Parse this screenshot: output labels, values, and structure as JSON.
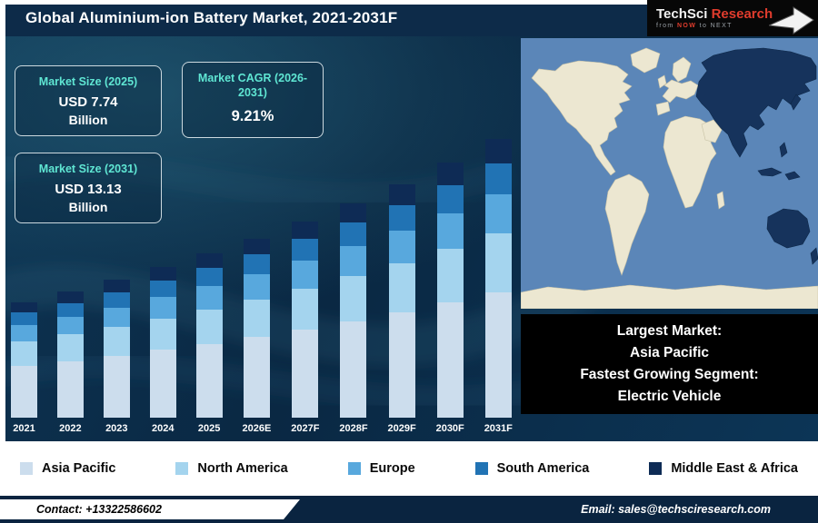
{
  "colors": {
    "header_bg": "#0d2b49",
    "main_bg": "#0a2843",
    "accent_teal": "#5fe6d3",
    "footer_bg": "#0a2440",
    "callout_bg": "#000000",
    "legend_bg": "#ffffff",
    "logo_red": "#e03c2d"
  },
  "header": {
    "title": "Global Aluminium-ion Battery Market, 2021-2031F",
    "logo": {
      "brand": "TechSci",
      "brand2": "Research",
      "tagline_pre": "from ",
      "tagline_highlight": "NOW",
      "tagline_post": " to NEXT"
    }
  },
  "stats": [
    {
      "label": "Market Size (2025)",
      "value": "USD 7.74",
      "unit": "Billion"
    },
    {
      "label": "Market CAGR (2026-2031)",
      "value": "9.21%"
    },
    {
      "label": "Market Size (2031)",
      "value": "USD 13.13",
      "unit": "Billion"
    }
  ],
  "chart_data": {
    "type": "bar",
    "stacked": true,
    "title": "Global Aluminium-ion Battery Market, 2021-2031F",
    "unit": "USD Billion",
    "categories": [
      "2021",
      "2022",
      "2023",
      "2024",
      "2025",
      "2026E",
      "2027F",
      "2028F",
      "2029F",
      "2030F",
      "2031F"
    ],
    "totals": [
      5.44,
      5.94,
      6.49,
      7.09,
      7.74,
      8.45,
      9.23,
      10.08,
      11.01,
      12.02,
      13.13
    ],
    "series": [
      {
        "name": "Asia Pacific",
        "color": "#ccdded",
        "values": [
          2.45,
          2.67,
          2.92,
          3.19,
          3.48,
          3.8,
          4.15,
          4.54,
          4.95,
          5.41,
          5.91
        ]
      },
      {
        "name": "North America",
        "color": "#a4d4ee",
        "values": [
          1.14,
          1.25,
          1.36,
          1.49,
          1.63,
          1.77,
          1.94,
          2.12,
          2.31,
          2.52,
          2.76
        ]
      },
      {
        "name": "Europe",
        "color": "#58a8dd",
        "values": [
          0.76,
          0.83,
          0.91,
          0.99,
          1.08,
          1.18,
          1.29,
          1.41,
          1.54,
          1.68,
          1.84
        ]
      },
      {
        "name": "South America",
        "color": "#2173b4",
        "values": [
          0.6,
          0.65,
          0.71,
          0.78,
          0.85,
          0.93,
          1.02,
          1.11,
          1.21,
          1.32,
          1.44
        ]
      },
      {
        "name": "Middle East & Africa",
        "color": "#0e2b55",
        "values": [
          0.49,
          0.53,
          0.58,
          0.64,
          0.7,
          0.76,
          0.83,
          0.91,
          0.99,
          1.08,
          1.18
        ]
      }
    ],
    "ylim": [
      0,
      14
    ],
    "xlabel": "",
    "ylabel": "",
    "grid": false,
    "legend_position": "bottom"
  },
  "map": {
    "highlighted_region": "Asia Pacific",
    "colors": {
      "ocean": "#5b86b8",
      "land": "#ece7d1",
      "highlight": "#16335c"
    }
  },
  "callout": {
    "lines": [
      "Largest Market:",
      "Asia Pacific",
      "Fastest Growing Segment:",
      "Electric Vehicle"
    ]
  },
  "footer": {
    "contact": "Contact: +13322586602",
    "email": "Email: sales@techsciresearch.com"
  }
}
